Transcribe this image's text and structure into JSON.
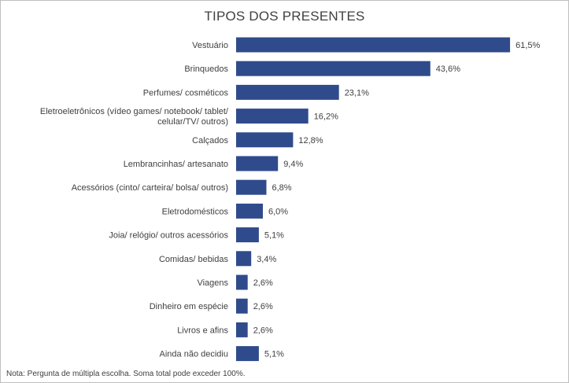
{
  "chart_data": {
    "type": "bar",
    "orientation": "horizontal",
    "title": "TIPOS DOS PRESENTES",
    "categories": [
      [
        "Vestuário"
      ],
      [
        "Brinquedos"
      ],
      [
        "Perfumes/ cosméticos"
      ],
      [
        "Eletroeletrônicos (vídeo games/ notebook/ tablet/",
        "celular/TV/ outros)"
      ],
      [
        "Calçados"
      ],
      [
        "Lembrancinhas/ artesanato"
      ],
      [
        "Acessórios (cinto/ carteira/ bolsa/ outros)"
      ],
      [
        "Eletrodomésticos"
      ],
      [
        "Joia/ relógio/ outros acessórios"
      ],
      [
        "Comidas/ bebidas"
      ],
      [
        "Viagens"
      ],
      [
        "Dinheiro em espécie"
      ],
      [
        "Livros e afins"
      ],
      [
        "Ainda não decidiu"
      ]
    ],
    "values": [
      61.5,
      43.6,
      23.1,
      16.2,
      12.8,
      9.4,
      6.8,
      6.0,
      5.1,
      3.4,
      2.6,
      2.6,
      2.6,
      5.1
    ],
    "value_labels": [
      "61,5%",
      "43,6%",
      "23,1%",
      "16,2%",
      "12,8%",
      "9,4%",
      "6,8%",
      "6,0%",
      "5,1%",
      "3,4%",
      "2,6%",
      "2,6%",
      "2,6%",
      "5,1%"
    ],
    "bar_color": "#2f4b8c",
    "grid": false,
    "legend": "none",
    "note": "Nota: Pergunta de múltipla escolha. Soma total pode exceder 100%."
  }
}
